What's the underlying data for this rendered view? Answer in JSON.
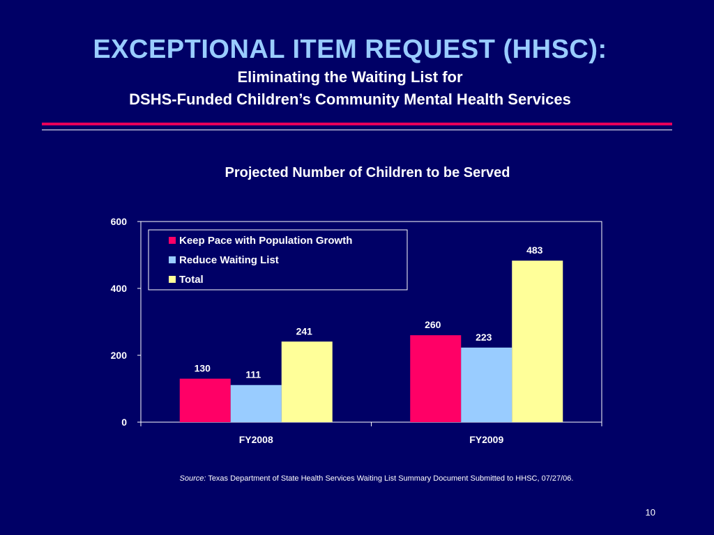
{
  "slide": {
    "title": "EXCEPTIONAL ITEM REQUEST (HHSC):",
    "subtitle_line1": "Eliminating the Waiting List for",
    "subtitle_line2": "DSHS-Funded Children’s Community Mental Health Services",
    "source_label": "Source:",
    "source_text": "Texas Department of State Health Services Waiting List Summary Document Submitted to HHSC, 07/27/06.",
    "page_number": "10"
  },
  "colors": {
    "background": "#000066",
    "title": "#99ccff",
    "accent_rule": "#e8005a"
  },
  "chart_data": {
    "type": "bar",
    "title": "Projected Number of Children to be Served",
    "categories": [
      "FY2008",
      "FY2009"
    ],
    "series": [
      {
        "name": "Keep Pace with Population Growth",
        "values": [
          130,
          260
        ],
        "color": "#ff0066"
      },
      {
        "name": "Reduce Waiting List",
        "values": [
          111,
          223
        ],
        "color": "#99ccff"
      },
      {
        "name": "Total",
        "values": [
          241,
          483
        ],
        "color": "#ffff99"
      }
    ],
    "yticks": [
      "0",
      "200",
      "400",
      "600"
    ],
    "ylim": [
      0,
      600
    ],
    "grid": false,
    "legend_position": "top-left"
  }
}
